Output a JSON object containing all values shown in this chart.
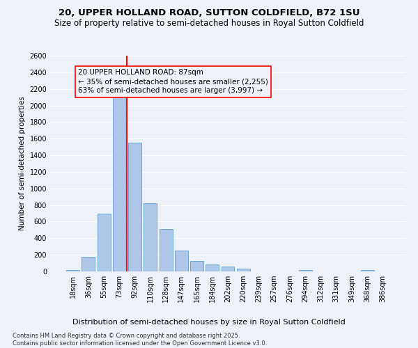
{
  "title": "20, UPPER HOLLAND ROAD, SUTTON COLDFIELD, B72 1SU",
  "subtitle": "Size of property relative to semi-detached houses in Royal Sutton Coldfield",
  "xlabel": "Distribution of semi-detached houses by size in Royal Sutton Coldfield",
  "ylabel": "Number of semi-detached properties",
  "footnote": "Contains HM Land Registry data © Crown copyright and database right 2025.\nContains public sector information licensed under the Open Government Licence v3.0.",
  "categories": [
    "18sqm",
    "36sqm",
    "55sqm",
    "73sqm",
    "92sqm",
    "110sqm",
    "128sqm",
    "147sqm",
    "165sqm",
    "184sqm",
    "202sqm",
    "220sqm",
    "239sqm",
    "257sqm",
    "276sqm",
    "294sqm",
    "312sqm",
    "331sqm",
    "349sqm",
    "368sqm",
    "386sqm"
  ],
  "values": [
    20,
    175,
    700,
    2115,
    1555,
    820,
    510,
    250,
    125,
    80,
    60,
    35,
    0,
    0,
    0,
    20,
    0,
    0,
    0,
    15,
    0
  ],
  "bar_color": "#aec6e8",
  "bar_edge_color": "#5a9fd4",
  "bar_width": 0.85,
  "vline_color": "red",
  "vline_pos": 3.5,
  "annotation_box_text": "20 UPPER HOLLAND ROAD: 87sqm\n← 35% of semi-detached houses are smaller (2,255)\n63% of semi-detached houses are larger (3,997) →",
  "ylim": [
    0,
    2600
  ],
  "yticks": [
    0,
    200,
    400,
    600,
    800,
    1000,
    1200,
    1400,
    1600,
    1800,
    2000,
    2200,
    2400,
    2600
  ],
  "bg_color": "#eef2f8",
  "grid_color": "#ffffff",
  "title_fontsize": 9.5,
  "subtitle_fontsize": 8.5,
  "xlabel_fontsize": 8,
  "ylabel_fontsize": 7.5,
  "tick_fontsize": 7,
  "annotation_fontsize": 7.5,
  "footnote_fontsize": 6
}
